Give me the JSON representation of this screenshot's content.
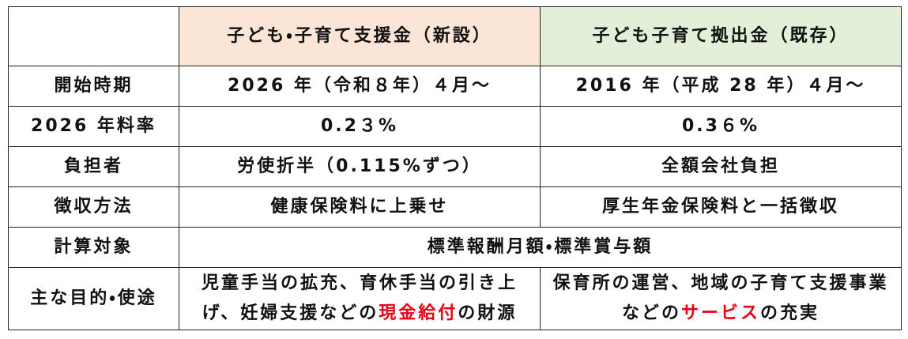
{
  "table": {
    "header": {
      "columns": [
        "子ども・子育て支援金（新設）",
        "子ども子育て拠出金（既存）"
      ],
      "column_colors": [
        "#fbe5d6",
        "#e2f0d9"
      ]
    },
    "rows": [
      {
        "label": "開始時期",
        "cells": [
          "2026 年（令和８年）４月～",
          "2016 年（平成 28 年）４月～"
        ]
      },
      {
        "label": "2026 年料率",
        "cells": [
          "0.2３%",
          "0.3６%"
        ]
      },
      {
        "label": "負担者",
        "cells": [
          "労使折半（0.115%ずつ）",
          "全額会社負担"
        ]
      },
      {
        "label": "徴収方法",
        "cells": [
          "健康保険料に上乗せ",
          "厚生年金保険料と一括徴収"
        ]
      },
      {
        "label": "計算対象",
        "cells": [
          "標準報酬月額・標準賞与額"
        ],
        "span": 2
      },
      {
        "label": "主な目的・使途",
        "cells": [
          [
            {
              "text": "児童手当の拡充、育休手当の引き上げ、妊婦支援などの"
            },
            {
              "text": "現金給付",
              "color": "#e60012"
            },
            {
              "text": "の財源"
            }
          ],
          [
            {
              "text": "保育所の運営、地域の子育て支援事業などの"
            },
            {
              "text": "サービス",
              "color": "#e60012"
            },
            {
              "text": "の充実"
            }
          ]
        ]
      }
    ]
  }
}
